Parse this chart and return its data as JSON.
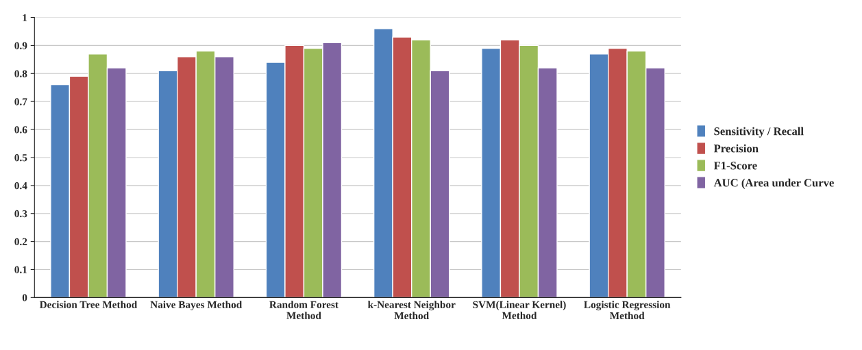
{
  "chart_data": {
    "type": "bar",
    "categories": [
      "Decision Tree Method",
      "Naive Bayes Method",
      "Random Forest\nMethod",
      "k-Nearest Neighbor\nMethod",
      "SVM(Linear Kernel)\nMethod",
      "Logistic Regression\nMethod"
    ],
    "series": [
      {
        "name": "Sensitivity / Recall",
        "color": "#4f81bd",
        "values": [
          0.76,
          0.81,
          0.84,
          0.96,
          0.89,
          0.87
        ]
      },
      {
        "name": "Precision",
        "color": "#c0504d",
        "values": [
          0.79,
          0.86,
          0.9,
          0.93,
          0.92,
          0.89
        ]
      },
      {
        "name": "F1-Score",
        "color": "#9bbb59",
        "values": [
          0.87,
          0.88,
          0.89,
          0.92,
          0.9,
          0.88
        ]
      },
      {
        "name": "AUC (Area under Curve",
        "color": "#8064a2",
        "values": [
          0.82,
          0.86,
          0.91,
          0.81,
          0.82,
          0.82
        ]
      }
    ],
    "ylim": [
      0,
      1
    ],
    "yticks": [
      0,
      0.1,
      0.2,
      0.3,
      0.4,
      0.5,
      0.6,
      0.7,
      0.8,
      0.9,
      1
    ],
    "grid": "y",
    "legend": "right"
  }
}
